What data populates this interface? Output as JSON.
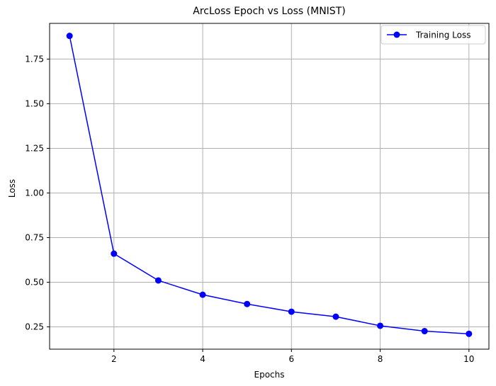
{
  "chart_data": {
    "type": "line",
    "title": "ArcLoss Epoch vs Loss (MNIST)",
    "xlabel": "Epochs",
    "ylabel": "Loss",
    "xlim": [
      0.55,
      10.45
    ],
    "ylim": [
      0.125,
      1.95
    ],
    "xticks": [
      2,
      4,
      6,
      8,
      10
    ],
    "xtick_labels": [
      "2",
      "4",
      "6",
      "8",
      "10"
    ],
    "yticks": [
      0.25,
      0.5,
      0.75,
      1.0,
      1.25,
      1.5,
      1.75
    ],
    "ytick_labels": [
      "0.25",
      "0.50",
      "0.75",
      "1.00",
      "1.25",
      "1.50",
      "1.75"
    ],
    "grid": true,
    "legend_position": "top-right",
    "series": [
      {
        "name": "Training Loss",
        "color": "#0000ff",
        "marker": "circle",
        "x": [
          1,
          2,
          3,
          4,
          5,
          6,
          7,
          8,
          9,
          10
        ],
        "y": [
          1.88,
          0.66,
          0.51,
          0.43,
          0.378,
          0.335,
          0.307,
          0.256,
          0.226,
          0.211
        ]
      }
    ]
  }
}
